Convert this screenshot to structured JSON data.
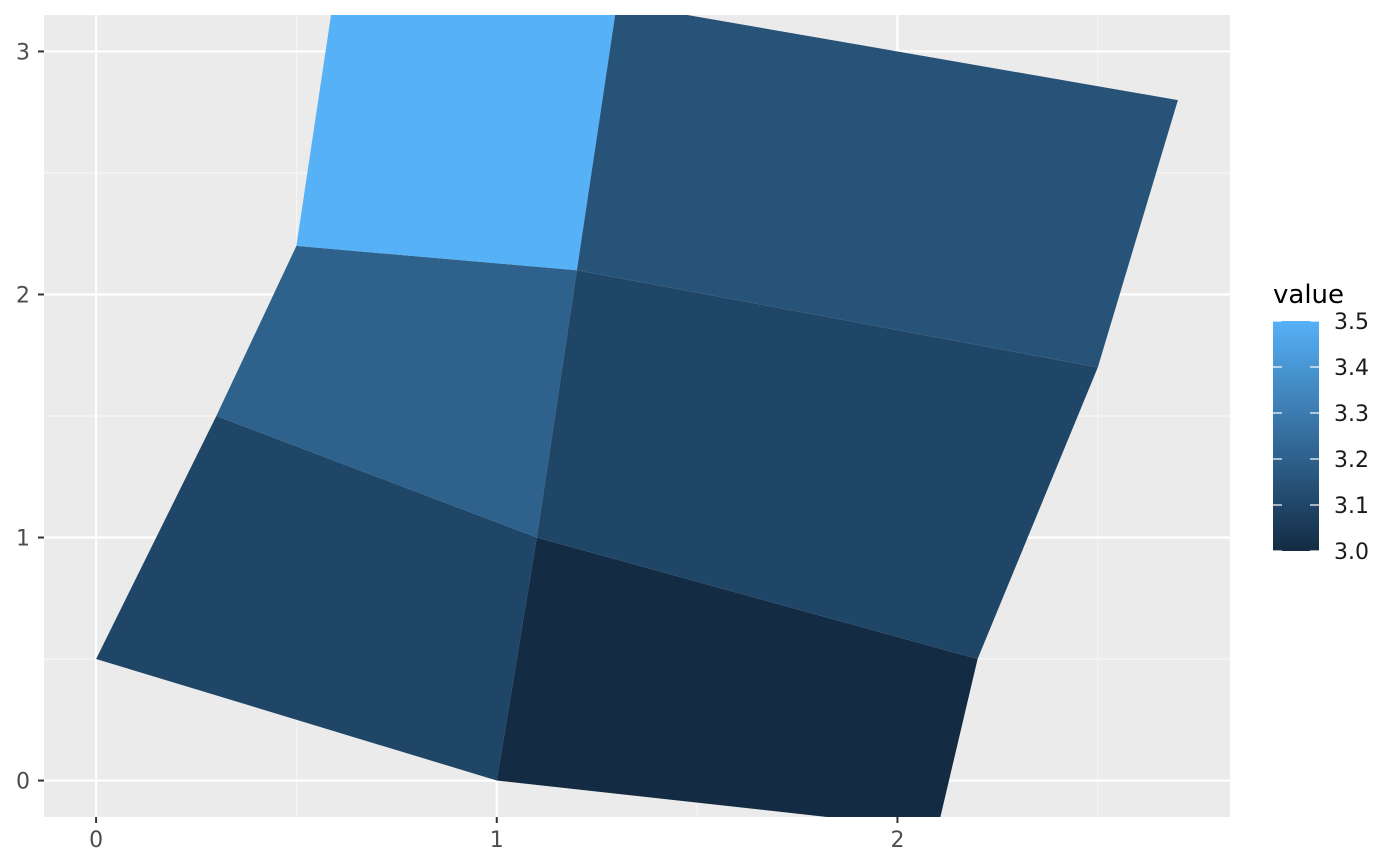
{
  "chart_data": {
    "type": "heatmap",
    "subtype": "polygon-mesh",
    "title": "",
    "xlabel": "",
    "ylabel": "",
    "xlim": [
      -0.13,
      2.83
    ],
    "ylim": [
      -0.15,
      3.15
    ],
    "x_breaks": [
      0,
      1,
      2
    ],
    "x_minor_breaks": [
      0.5,
      1.5,
      2.5
    ],
    "y_breaks": [
      0,
      1,
      2,
      3
    ],
    "y_minor_breaks": [
      0.5,
      1.5,
      2.5
    ],
    "x_tick_labels": [
      "0",
      "1",
      "2"
    ],
    "y_tick_labels": [
      "0",
      "1",
      "2",
      "3"
    ],
    "grid": true,
    "legend_position": "right",
    "legend": {
      "title": "value",
      "range": [
        3.0,
        3.5
      ],
      "breaks": [
        3.5,
        3.4,
        3.3,
        3.2,
        3.1,
        3.0
      ],
      "labels": [
        "3.5",
        "3.4",
        "3.3",
        "3.2",
        "3.1",
        "3.0"
      ],
      "low_color": "#132b43",
      "high_color": "#56b1f7"
    },
    "cells": [
      {
        "id": 1,
        "value": 3.1,
        "vertices": [
          [
            0,
            0.5
          ],
          [
            1,
            0
          ],
          [
            1.1,
            1
          ],
          [
            0.3,
            1.5
          ]
        ]
      },
      {
        "id": 2,
        "value": 3.2,
        "vertices": [
          [
            0.3,
            1.5
          ],
          [
            1.1,
            1
          ],
          [
            1.2,
            2.1
          ],
          [
            0.5,
            2.2
          ]
        ]
      },
      {
        "id": 3,
        "value": 3.5,
        "vertices": [
          [
            0.5,
            2.2
          ],
          [
            1.2,
            2.1
          ],
          [
            1.3,
            3.2
          ],
          [
            0.6,
            3.3
          ]
        ]
      },
      {
        "id": 4,
        "value": 3.0,
        "vertices": [
          [
            1,
            0
          ],
          [
            2.1,
            -0.2
          ],
          [
            2.2,
            0.5
          ],
          [
            1.1,
            1
          ]
        ]
      },
      {
        "id": 5,
        "value": 3.1,
        "vertices": [
          [
            1.1,
            1
          ],
          [
            2.2,
            0.5
          ],
          [
            2.5,
            1.7
          ],
          [
            1.2,
            2.1
          ]
        ]
      },
      {
        "id": 6,
        "value": 3.15,
        "vertices": [
          [
            1.2,
            2.1
          ],
          [
            2.5,
            1.7
          ],
          [
            2.7,
            2.8
          ],
          [
            1.3,
            3.2
          ]
        ]
      }
    ]
  },
  "colors": {
    "panel_background": "#ebebeb",
    "grid_major": "#ffffff",
    "grid_minor": "#f5f5f5",
    "tick_color": "#333333",
    "tick_label_color": "#4d4d4d"
  }
}
